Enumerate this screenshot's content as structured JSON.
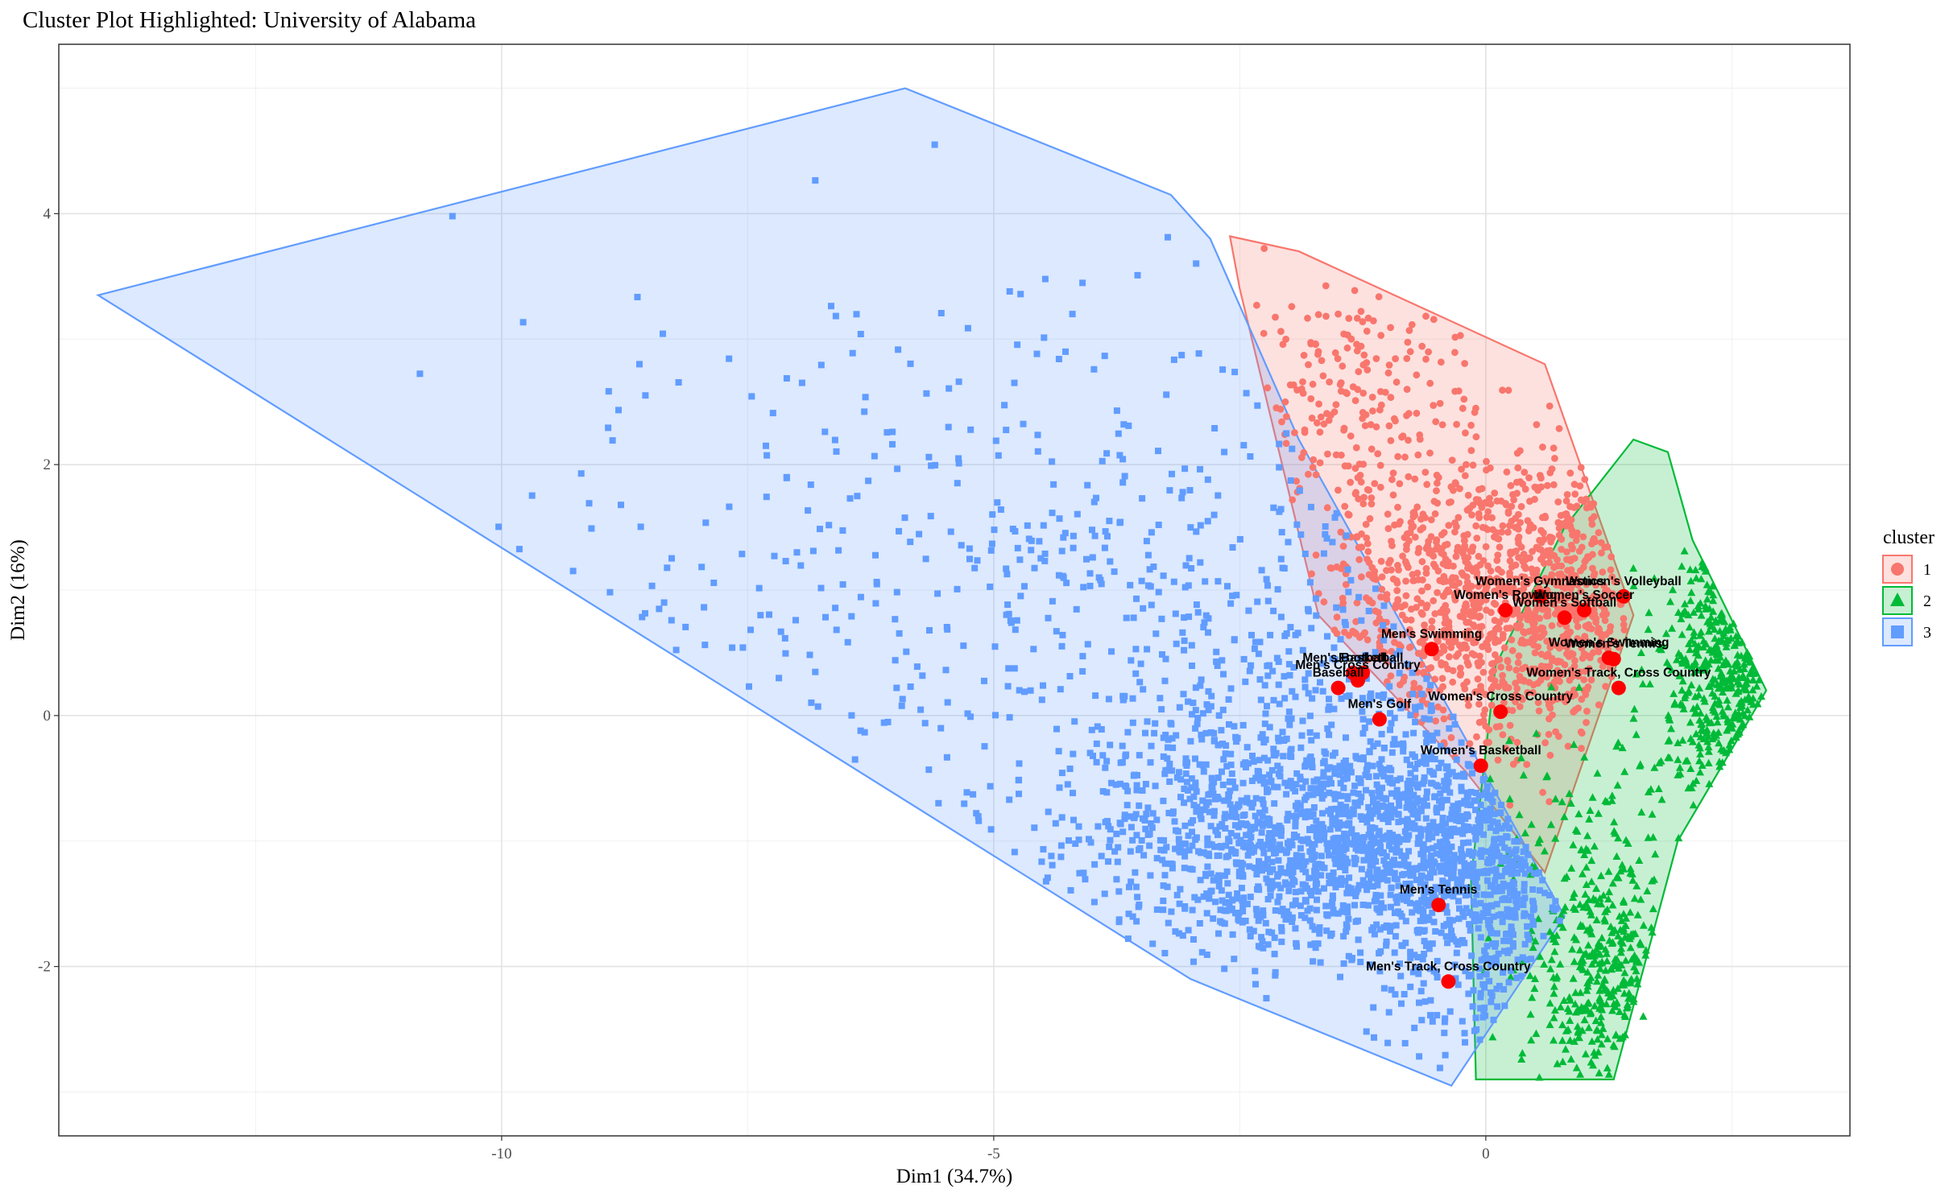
{
  "chart_data": {
    "type": "scatter",
    "title": "Cluster Plot Highlighted: University of Alabama",
    "xlabel": "Dim1 (34.7%)",
    "ylabel": "Dim2 (16%)",
    "xlim": [
      -14.5,
      3.7
    ],
    "ylim": [
      -3.35,
      5.35
    ],
    "x_ticks": [
      -10,
      -5,
      0
    ],
    "y_ticks": [
      -2,
      0,
      2,
      4
    ],
    "grid": true,
    "legend": {
      "title": "cluster",
      "position": "right",
      "entries": [
        {
          "label": "1",
          "color": "#F8766D",
          "shape": "circle"
        },
        {
          "label": "2",
          "color": "#00BA38",
          "shape": "triangle"
        },
        {
          "label": "3",
          "color": "#619CFF",
          "shape": "square"
        }
      ]
    },
    "series": [
      {
        "name": "1",
        "color": "#F8766D",
        "marker": "circle",
        "hull": [
          [
            -2.6,
            3.82
          ],
          [
            -1.9,
            3.7
          ],
          [
            0.6,
            2.8
          ],
          [
            1.5,
            0.8
          ],
          [
            0.6,
            -1.25
          ],
          [
            -0.2,
            -0.45
          ],
          [
            -1.7,
            0.8
          ],
          [
            -2.5,
            3.4
          ]
        ],
        "points": [
          [
            -1.5,
            3.2
          ],
          [
            -0.8,
            2.6
          ],
          [
            -0.2,
            2.0
          ],
          [
            0.3,
            1.5
          ],
          [
            0.8,
            1.1
          ],
          [
            -1.2,
            1.8
          ],
          [
            0.5,
            0.5
          ],
          [
            1.0,
            0.2
          ],
          [
            0.2,
            0.9
          ],
          [
            -0.5,
            1.4
          ]
        ]
      },
      {
        "name": "2",
        "color": "#00BA38",
        "marker": "triangle",
        "hull": [
          [
            1.5,
            2.2
          ],
          [
            1.85,
            2.1
          ],
          [
            2.1,
            1.4
          ],
          [
            2.85,
            0.2
          ],
          [
            1.95,
            -1.0
          ],
          [
            1.3,
            -2.9
          ],
          [
            -0.1,
            -2.9
          ],
          [
            -0.15,
            -1.3
          ],
          [
            0.1,
            0.4
          ],
          [
            0.8,
            1.5
          ]
        ],
        "points": [
          [
            2.4,
            0.6
          ],
          [
            2.6,
            0.1
          ],
          [
            2.2,
            -0.4
          ],
          [
            1.4,
            -1.7
          ],
          [
            1.6,
            -2.4
          ],
          [
            0.9,
            -2.6
          ],
          [
            0.5,
            -2.1
          ],
          [
            1.9,
            1.0
          ],
          [
            0.8,
            -1.3
          ],
          [
            2.0,
            -0.2
          ]
        ]
      },
      {
        "name": "3",
        "color": "#619CFF",
        "marker": "square",
        "hull": [
          [
            -14.1,
            3.35
          ],
          [
            -5.9,
            5.0
          ],
          [
            -3.2,
            4.15
          ],
          [
            -2.8,
            3.8
          ],
          [
            -1.9,
            2.2
          ],
          [
            0.8,
            -1.6
          ],
          [
            -0.35,
            -2.95
          ],
          [
            -3.0,
            -2.1
          ]
        ],
        "points": [
          [
            -10.5,
            3.98
          ],
          [
            -8.6,
            2.8
          ],
          [
            -8.4,
            0.85
          ],
          [
            -7.0,
            1.3
          ],
          [
            -5.6,
            4.55
          ],
          [
            -4.2,
            3.2
          ],
          [
            -3.0,
            1.5
          ],
          [
            -2.2,
            0.4
          ],
          [
            -1.5,
            -0.9
          ],
          [
            -0.8,
            -1.2
          ],
          [
            -2.6,
            -0.6
          ],
          [
            -0.3,
            -1.8
          ]
        ]
      }
    ],
    "highlighted_points": [
      {
        "label": "Women's Gymnastics",
        "x": 0.55,
        "y": 0.95
      },
      {
        "label": "Women's Volleyball",
        "x": 1.4,
        "y": 0.95
      },
      {
        "label": "Women's Rowing",
        "x": 0.2,
        "y": 0.84
      },
      {
        "label": "Women's Soccer",
        "x": 1.0,
        "y": 0.84
      },
      {
        "label": "Women's Softball",
        "x": 0.8,
        "y": 0.78
      },
      {
        "label": "Men's Swimming",
        "x": -0.55,
        "y": 0.53
      },
      {
        "label": "Women's Swimming",
        "x": 1.25,
        "y": 0.46
      },
      {
        "label": "Women's Tennis",
        "x": 1.3,
        "y": 0.45
      },
      {
        "label": "Men's Basketball",
        "x": -1.35,
        "y": 0.34
      },
      {
        "label": "Football",
        "x": -1.25,
        "y": 0.34
      },
      {
        "label": "Men's Cross Country",
        "x": -1.3,
        "y": 0.28
      },
      {
        "label": "Baseball",
        "x": -1.5,
        "y": 0.22
      },
      {
        "label": "Women's Track, Cross Country",
        "x": 1.35,
        "y": 0.22
      },
      {
        "label": "Women's Cross Country",
        "x": 0.15,
        "y": 0.03
      },
      {
        "label": "Men's Golf",
        "x": -1.08,
        "y": -0.03
      },
      {
        "label": "Women's Basketball",
        "x": -0.05,
        "y": -0.4
      },
      {
        "label": "Men's Tennis",
        "x": -0.48,
        "y": -1.51
      },
      {
        "label": "Men's Track, Cross Country",
        "x": -0.38,
        "y": -2.12
      }
    ]
  }
}
